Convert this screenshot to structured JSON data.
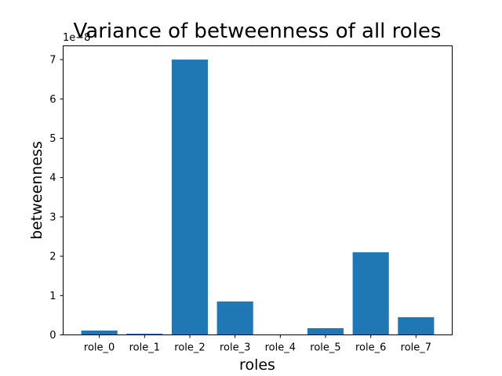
{
  "chart_data": {
    "type": "bar",
    "title": "Variance of betweenness of all roles",
    "xlabel": "roles",
    "ylabel": "betweenness",
    "y_scale_label": "1e−8",
    "y_scale": 1e-08,
    "categories": [
      "role_0",
      "role_1",
      "role_2",
      "role_3",
      "role_4",
      "role_5",
      "role_6",
      "role_7"
    ],
    "values": [
      0.11,
      0.03,
      7.0,
      0.85,
      0.0,
      0.17,
      2.1,
      0.45
    ],
    "ylim": [
      0,
      7.35
    ],
    "yticks": [
      "0",
      "1",
      "2",
      "3",
      "4",
      "5",
      "6",
      "7"
    ],
    "bar_color": "#1f77b4",
    "grid": false,
    "legend": false
  }
}
